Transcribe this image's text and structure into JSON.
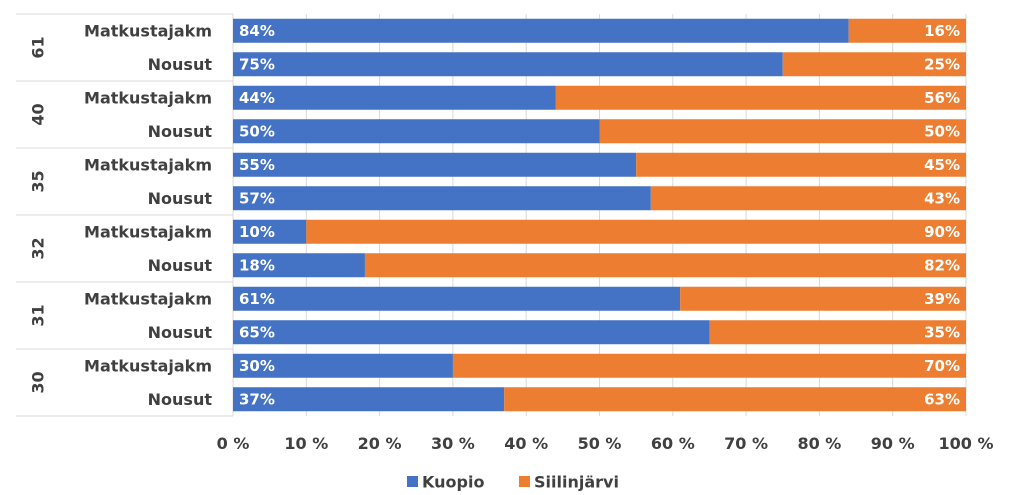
{
  "chart_data": {
    "type": "bar",
    "orientation": "horizontal",
    "stacked": "percent",
    "title": "",
    "xlabel": "",
    "ylabel": "",
    "xlim": [
      0,
      100
    ],
    "x_ticks": [
      "0 %",
      "10 %",
      "20 %",
      "30 %",
      "40 %",
      "50 %",
      "60 %",
      "70 %",
      "80 %",
      "90 %",
      "100 %"
    ],
    "groups": [
      {
        "name": "61",
        "rows": [
          {
            "label": "Matkustajakm",
            "values": [
              84,
              16
            ],
            "labels": [
              "84%",
              "16%"
            ]
          },
          {
            "label": "Nousut",
            "values": [
              75,
              25
            ],
            "labels": [
              "75%",
              "25%"
            ]
          }
        ]
      },
      {
        "name": "40",
        "rows": [
          {
            "label": "Matkustajakm",
            "values": [
              44,
              56
            ],
            "labels": [
              "44%",
              "56%"
            ]
          },
          {
            "label": "Nousut",
            "values": [
              50,
              50
            ],
            "labels": [
              "50%",
              "50%"
            ]
          }
        ]
      },
      {
        "name": "35",
        "rows": [
          {
            "label": "Matkustajakm",
            "values": [
              55,
              45
            ],
            "labels": [
              "55%",
              "45%"
            ]
          },
          {
            "label": "Nousut",
            "values": [
              57,
              43
            ],
            "labels": [
              "57%",
              "43%"
            ]
          }
        ]
      },
      {
        "name": "32",
        "rows": [
          {
            "label": "Matkustajakm",
            "values": [
              10,
              90
            ],
            "labels": [
              "10%",
              "90%"
            ]
          },
          {
            "label": "Nousut",
            "values": [
              18,
              82
            ],
            "labels": [
              "18%",
              "82%"
            ]
          }
        ]
      },
      {
        "name": "31",
        "rows": [
          {
            "label": "Matkustajakm",
            "values": [
              61,
              39
            ],
            "labels": [
              "61%",
              "39%"
            ]
          },
          {
            "label": "Nousut",
            "values": [
              65,
              35
            ],
            "labels": [
              "65%",
              "35%"
            ]
          }
        ]
      },
      {
        "name": "30",
        "rows": [
          {
            "label": "Matkustajakm",
            "values": [
              30,
              70
            ],
            "labels": [
              "30%",
              "70%"
            ]
          },
          {
            "label": "Nousut",
            "values": [
              37,
              63
            ],
            "labels": [
              "37%",
              "63%"
            ]
          }
        ]
      }
    ],
    "series": [
      {
        "name": "Kuopio",
        "color": "#4472c4"
      },
      {
        "name": "Siilinjärvi",
        "color": "#ed7d31"
      }
    ],
    "grid": true,
    "legend": "bottom"
  }
}
